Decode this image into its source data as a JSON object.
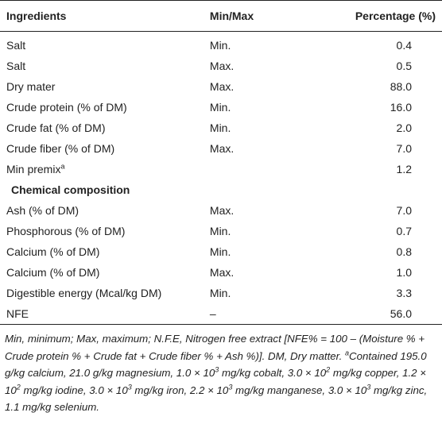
{
  "table": {
    "header": [
      "Ingredients",
      "Min/Max",
      "Percentage (%)"
    ],
    "rows": [
      {
        "ingredient": "Salt",
        "minmax": "Min.",
        "percentage": "0.4"
      },
      {
        "ingredient": "Salt",
        "minmax": "Max.",
        "percentage": "0.5"
      },
      {
        "ingredient": "Dry mater",
        "minmax": "Max.",
        "percentage": "88.0"
      },
      {
        "ingredient": "Crude protein (% of DM)",
        "minmax": "Min.",
        "percentage": "16.0"
      },
      {
        "ingredient": "Crude fat (% of DM)",
        "minmax": "Min.",
        "percentage": "2.0"
      },
      {
        "ingredient": "Crude fiber (% of DM)",
        "minmax": "Max.",
        "percentage": "7.0"
      },
      {
        "ingredient": "Min premix",
        "note": "a",
        "percentage": "1.2"
      },
      {
        "section": "Chemical composition"
      },
      {
        "ingredient": "Ash (% of DM)",
        "minmax": "Max.",
        "percentage": "7.0"
      },
      {
        "ingredient": "Phosphorous (% of DM)",
        "minmax": "Min.",
        "percentage": "0.7"
      },
      {
        "ingredient": "Calcium (% of DM)",
        "minmax": "Min.",
        "percentage": "0.8"
      },
      {
        "ingredient": "Calcium (% of DM)",
        "minmax": "Max.",
        "percentage": "1.0"
      },
      {
        "ingredient": "Digestible energy (Mcal/kg DM)",
        "minmax": "Min.",
        "percentage": "3.3"
      },
      {
        "ingredient": "NFE",
        "minmax": "–",
        "percentage": "56.0"
      }
    ],
    "footnote": [
      "Min, minimum; Max, maximum; N.F.E, Nitrogen free extract [NFE% = 100 – (Moisture % + Crude protein % + Crude fat + Crude fiber % + Ash %)]. DM, Dry matter. ",
      "a",
      "Contained 195.0 g/kg calcium, 21.0 g/kg magnesium, 1.0 × 10",
      "3",
      " mg/kg cobalt, 3.0 × 10",
      "2",
      " mg/kg copper, 1.2 × 10",
      "2",
      " mg/kg iodine, 3.0 × 10",
      "3",
      " mg/kg iron, 2.2 × 10",
      "3",
      " mg/kg manganese, 3.0 × 10",
      "3",
      " mg/kg zinc, 1.1 mg/kg selenium."
    ]
  }
}
